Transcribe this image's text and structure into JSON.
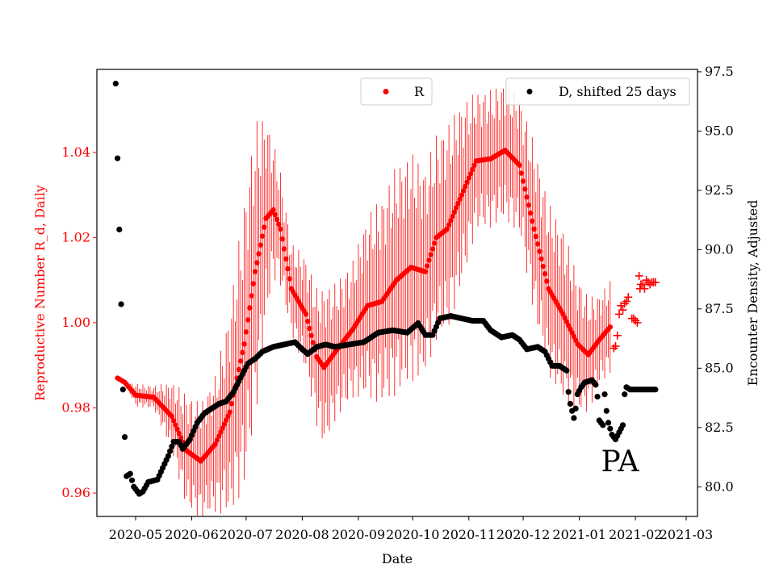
{
  "chart_data": {
    "type": "scatter",
    "xlabel": "Date",
    "ylabel_left": "Reproductive Number R_d, Daily",
    "ylabel_right": "Encounter Density, Adjusted",
    "annotation": "PA",
    "x_tick_labels": [
      "2020-05",
      "2020-06",
      "2020-07",
      "2020-08",
      "2020-09",
      "2020-10",
      "2020-11",
      "2020-12",
      "2021-01",
      "2021-02",
      "2021-03"
    ],
    "y_left_range": [
      0.9545,
      1.0595
    ],
    "y_left_ticks": [
      0.96,
      0.98,
      1.0,
      1.02,
      1.04
    ],
    "y_left_tick_labels": [
      "0.96",
      "0.98",
      "1.00",
      "1.02",
      "1.04"
    ],
    "y_right_range": [
      78.75,
      97.6
    ],
    "y_right_ticks": [
      80.0,
      82.5,
      85.0,
      87.5,
      90.0,
      92.5,
      95.0,
      97.5
    ],
    "y_right_tick_labels": [
      "80.0",
      "82.5",
      "85.0",
      "87.5",
      "90.0",
      "92.5",
      "95.0",
      "97.5"
    ],
    "colors": {
      "r_series": "#ff0000",
      "d_series": "#000000",
      "left_axis": "#ff0000",
      "right_axis": "#000000"
    },
    "legend_left": {
      "label": "R",
      "placement": "upper-center"
    },
    "legend_right": {
      "label": "D, shifted 25 days",
      "placement": "upper-right"
    },
    "series_r_keypoints": [
      {
        "day": -10,
        "r": 0.987,
        "ci": 0.0
      },
      {
        "day": -6,
        "r": 0.986,
        "ci": 0.0
      },
      {
        "day": 0,
        "r": 0.983,
        "ci": 0.002
      },
      {
        "day": 10,
        "r": 0.9825,
        "ci": 0.002
      },
      {
        "day": 20,
        "r": 0.978,
        "ci": 0.006
      },
      {
        "day": 28,
        "r": 0.97,
        "ci": 0.01
      },
      {
        "day": 36,
        "r": 0.9675,
        "ci": 0.01
      },
      {
        "day": 44,
        "r": 0.9715,
        "ci": 0.012
      },
      {
        "day": 52,
        "r": 0.979,
        "ci": 0.018
      },
      {
        "day": 60,
        "r": 0.995,
        "ci": 0.025
      },
      {
        "day": 66,
        "r": 1.012,
        "ci": 0.026
      },
      {
        "day": 72,
        "r": 1.0245,
        "ci": 0.018
      },
      {
        "day": 76,
        "r": 1.0265,
        "ci": 0.012
      },
      {
        "day": 80,
        "r": 1.022,
        "ci": 0.01
      },
      {
        "day": 86,
        "r": 1.008,
        "ci": 0.008
      },
      {
        "day": 94,
        "r": 1.002,
        "ci": 0.01
      },
      {
        "day": 100,
        "r": 0.992,
        "ci": 0.012
      },
      {
        "day": 104,
        "r": 0.9895,
        "ci": 0.014
      },
      {
        "day": 110,
        "r": 0.993,
        "ci": 0.012
      },
      {
        "day": 120,
        "r": 0.9985,
        "ci": 0.012
      },
      {
        "day": 128,
        "r": 1.004,
        "ci": 0.016
      },
      {
        "day": 136,
        "r": 1.005,
        "ci": 0.018
      },
      {
        "day": 144,
        "r": 1.01,
        "ci": 0.02
      },
      {
        "day": 152,
        "r": 1.013,
        "ci": 0.02
      },
      {
        "day": 160,
        "r": 1.012,
        "ci": 0.018
      },
      {
        "day": 166,
        "r": 1.02,
        "ci": 0.018
      },
      {
        "day": 172,
        "r": 1.022,
        "ci": 0.018
      },
      {
        "day": 180,
        "r": 1.03,
        "ci": 0.016
      },
      {
        "day": 188,
        "r": 1.038,
        "ci": 0.012
      },
      {
        "day": 196,
        "r": 1.0385,
        "ci": 0.012
      },
      {
        "day": 204,
        "r": 1.0405,
        "ci": 0.012
      },
      {
        "day": 212,
        "r": 1.037,
        "ci": 0.012
      },
      {
        "day": 220,
        "r": 1.022,
        "ci": 0.015
      },
      {
        "day": 228,
        "r": 1.008,
        "ci": 0.015
      },
      {
        "day": 236,
        "r": 1.002,
        "ci": 0.015
      },
      {
        "day": 244,
        "r": 0.995,
        "ci": 0.012
      },
      {
        "day": 250,
        "r": 0.9925,
        "ci": 0.01
      },
      {
        "day": 256,
        "r": 0.996,
        "ci": 0.008
      },
      {
        "day": 262,
        "r": 0.999,
        "ci": 0.008
      }
    ],
    "series_r_projected": [
      {
        "day": 264,
        "r": 0.994
      },
      {
        "day": 265,
        "r": 0.9945
      },
      {
        "day": 266,
        "r": 0.997
      },
      {
        "day": 267,
        "r": 1.002
      },
      {
        "day": 268,
        "r": 1.004
      },
      {
        "day": 269,
        "r": 1.003
      },
      {
        "day": 270,
        "r": 1.0045
      },
      {
        "day": 271,
        "r": 1.005
      },
      {
        "day": 272,
        "r": 1.006
      },
      {
        "day": 274,
        "r": 1.001
      },
      {
        "day": 275,
        "r": 1.001
      },
      {
        "day": 276,
        "r": 1.0005
      },
      {
        "day": 277,
        "r": 1.0
      },
      {
        "day": 278,
        "r": 1.011
      },
      {
        "day": 278.5,
        "r": 1.008
      },
      {
        "day": 279,
        "r": 1.009
      },
      {
        "day": 280,
        "r": 1.009
      },
      {
        "day": 281,
        "r": 1.008
      },
      {
        "day": 282,
        "r": 1.01
      },
      {
        "day": 283,
        "r": 1.0095
      },
      {
        "day": 284,
        "r": 1.009
      },
      {
        "day": 285,
        "r": 1.0095
      },
      {
        "day": 286,
        "r": 1.0095
      },
      {
        "day": 287,
        "r": 1.0095
      }
    ],
    "series_d": [
      {
        "day": -11,
        "d": 97.0
      },
      {
        "day": -10,
        "d": 93.85
      },
      {
        "day": -9,
        "d": 90.85
      },
      {
        "day": -8,
        "d": 87.7
      },
      {
        "day": -7,
        "d": 84.1
      },
      {
        "day": -6,
        "d": 82.1
      },
      {
        "day": -5,
        "d": 80.45
      },
      {
        "day": -3,
        "d": 80.55
      },
      {
        "day": -1,
        "d": 80.0
      },
      {
        "day": 2,
        "d": 79.7
      },
      {
        "day": 4,
        "d": 79.8
      },
      {
        "day": 7,
        "d": 80.2
      },
      {
        "day": 12,
        "d": 80.3
      },
      {
        "day": 15,
        "d": 80.8
      },
      {
        "day": 18,
        "d": 81.3
      },
      {
        "day": 21,
        "d": 81.9
      },
      {
        "day": 24,
        "d": 81.9
      },
      {
        "day": 26,
        "d": 81.6
      },
      {
        "day": 30,
        "d": 82.0
      },
      {
        "day": 34,
        "d": 82.7
      },
      {
        "day": 38,
        "d": 83.1
      },
      {
        "day": 42,
        "d": 83.3
      },
      {
        "day": 46,
        "d": 83.5
      },
      {
        "day": 50,
        "d": 83.6
      },
      {
        "day": 54,
        "d": 84.0
      },
      {
        "day": 58,
        "d": 84.6
      },
      {
        "day": 62,
        "d": 85.2
      },
      {
        "day": 66,
        "d": 85.4
      },
      {
        "day": 70,
        "d": 85.7
      },
      {
        "day": 76,
        "d": 85.9
      },
      {
        "day": 82,
        "d": 86.0
      },
      {
        "day": 88,
        "d": 86.1
      },
      {
        "day": 92,
        "d": 85.8
      },
      {
        "day": 95,
        "d": 85.6
      },
      {
        "day": 100,
        "d": 85.9
      },
      {
        "day": 105,
        "d": 86.0
      },
      {
        "day": 110,
        "d": 85.9
      },
      {
        "day": 118,
        "d": 86.0
      },
      {
        "day": 126,
        "d": 86.1
      },
      {
        "day": 134,
        "d": 86.5
      },
      {
        "day": 142,
        "d": 86.6
      },
      {
        "day": 150,
        "d": 86.5
      },
      {
        "day": 156,
        "d": 86.9
      },
      {
        "day": 160,
        "d": 86.4
      },
      {
        "day": 164,
        "d": 86.4
      },
      {
        "day": 168,
        "d": 87.1
      },
      {
        "day": 174,
        "d": 87.2
      },
      {
        "day": 180,
        "d": 87.1
      },
      {
        "day": 186,
        "d": 87.0
      },
      {
        "day": 192,
        "d": 87.0
      },
      {
        "day": 196,
        "d": 86.6
      },
      {
        "day": 202,
        "d": 86.3
      },
      {
        "day": 208,
        "d": 86.4
      },
      {
        "day": 212,
        "d": 86.2
      },
      {
        "day": 216,
        "d": 85.8
      },
      {
        "day": 222,
        "d": 85.9
      },
      {
        "day": 226,
        "d": 85.7
      },
      {
        "day": 230,
        "d": 85.1
      },
      {
        "day": 234,
        "d": 85.1
      },
      {
        "day": 238,
        "d": 84.9
      },
      {
        "day": 239,
        "d": 84.0
      },
      {
        "day": 240,
        "d": 83.5
      },
      {
        "day": 242,
        "d": 82.9
      },
      {
        "day": 243,
        "d": 83.3
      },
      {
        "day": 244,
        "d": 83.9
      },
      {
        "day": 246,
        "d": 84.2
      },
      {
        "day": 248,
        "d": 84.4
      },
      {
        "day": 252,
        "d": 84.5
      },
      {
        "day": 254,
        "d": 84.3
      },
      {
        "day": 255,
        "d": 83.8
      },
      {
        "day": 256,
        "d": 82.8
      },
      {
        "day": 258,
        "d": 82.6
      },
      {
        "day": 259,
        "d": 83.9
      },
      {
        "day": 260,
        "d": 83.2
      },
      {
        "day": 261,
        "d": 82.7
      },
      {
        "day": 263,
        "d": 82.2
      },
      {
        "day": 265,
        "d": 82.0
      },
      {
        "day": 267,
        "d": 82.3
      },
      {
        "day": 269,
        "d": 82.6
      },
      {
        "day": 270,
        "d": 83.9
      },
      {
        "day": 271,
        "d": 84.2
      },
      {
        "day": 273,
        "d": 84.1
      },
      {
        "day": 276,
        "d": 84.1
      },
      {
        "day": 280,
        "d": 84.1
      },
      {
        "day": 284,
        "d": 84.1
      },
      {
        "day": 287,
        "d": 84.1
      }
    ]
  }
}
